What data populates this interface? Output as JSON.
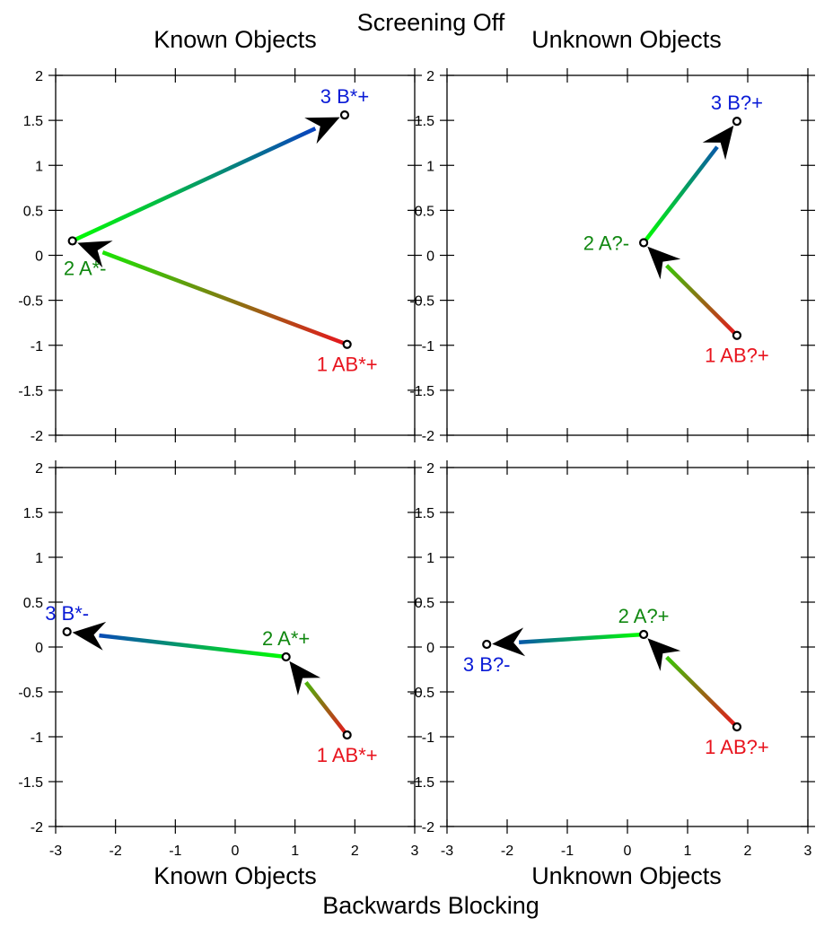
{
  "figure": {
    "top_title": "Screening Off",
    "bottom_title": "Backwards Blocking",
    "column_titles": [
      "Known Objects",
      "Unknown Objects"
    ],
    "bottom_axis_titles": [
      "Known Objects",
      "Unknown Objects"
    ]
  },
  "chart_data": [
    {
      "type": "line",
      "panel": "top-left",
      "title": "Known Objects",
      "xlim": [
        -3,
        3
      ],
      "ylim": [
        -2,
        2
      ],
      "x_ticks": [
        "-3",
        "-2",
        "-1",
        "0",
        "1",
        "2",
        "3"
      ],
      "y_ticks": [
        "2",
        "1.5",
        "1",
        "0.5",
        "0",
        "-0.5",
        "-1",
        "-1.5",
        "-2"
      ],
      "points": [
        {
          "label": "1 AB*+",
          "x": 1.87,
          "y": -0.99,
          "color": "#e8141e",
          "label_pos": "below"
        },
        {
          "label": "2 A*-",
          "x": -2.72,
          "y": 0.16,
          "color": "#118811",
          "label_pos": "below-left"
        },
        {
          "label": "3 B*+",
          "x": 1.83,
          "y": 1.56,
          "color": "#0a1bd6",
          "label_pos": "above"
        }
      ],
      "arrows": [
        {
          "from": 0,
          "to": 1,
          "color_from": "#e8141e",
          "color_to": "#00ff00"
        },
        {
          "from": 1,
          "to": 2,
          "color_from": "#00ff00",
          "color_to": "#0a2bd6"
        }
      ]
    },
    {
      "type": "line",
      "panel": "top-right",
      "title": "Unknown Objects",
      "xlim": [
        -3,
        3
      ],
      "ylim": [
        -2,
        2
      ],
      "x_ticks": [
        "-3",
        "-2",
        "-1",
        "0",
        "1",
        "2",
        "3"
      ],
      "y_ticks": [
        "2",
        "1.5",
        "1",
        "0.5",
        "0",
        "-0.5",
        "-1",
        "-1.5",
        "-2"
      ],
      "points": [
        {
          "label": "1 AB?+",
          "x": 1.82,
          "y": -0.89,
          "color": "#e8141e",
          "label_pos": "below"
        },
        {
          "label": "2 A?-",
          "x": 0.27,
          "y": 0.14,
          "color": "#118811",
          "label_pos": "left"
        },
        {
          "label": "3 B?+",
          "x": 1.82,
          "y": 1.49,
          "color": "#0a1bd6",
          "label_pos": "above"
        }
      ],
      "arrows": [
        {
          "from": 0,
          "to": 1,
          "color_from": "#e8141e",
          "color_to": "#00ff00"
        },
        {
          "from": 1,
          "to": 2,
          "color_from": "#00ff00",
          "color_to": "#0a2bd6"
        }
      ]
    },
    {
      "type": "line",
      "panel": "bottom-left",
      "title": "",
      "xlim": [
        -3,
        3
      ],
      "ylim": [
        -2,
        2
      ],
      "x_ticks": [
        "-3",
        "-2",
        "-1",
        "0",
        "1",
        "2",
        "3"
      ],
      "y_ticks": [
        "2",
        "1.5",
        "1",
        "0.5",
        "0",
        "-0.5",
        "-1",
        "-1.5",
        "-2"
      ],
      "points": [
        {
          "label": "1 AB*+",
          "x": 1.87,
          "y": -0.98,
          "color": "#e8141e",
          "label_pos": "below"
        },
        {
          "label": "2 A*+",
          "x": 0.85,
          "y": -0.11,
          "color": "#118811",
          "label_pos": "above"
        },
        {
          "label": "3 B*-",
          "x": -2.81,
          "y": 0.17,
          "color": "#0a1bd6",
          "label_pos": "above"
        }
      ],
      "arrows": [
        {
          "from": 0,
          "to": 1,
          "color_from": "#e8141e",
          "color_to": "#00ff00"
        },
        {
          "from": 1,
          "to": 2,
          "color_from": "#00ff00",
          "color_to": "#0a2bd6"
        }
      ]
    },
    {
      "type": "line",
      "panel": "bottom-right",
      "title": "",
      "xlim": [
        -3,
        3
      ],
      "ylim": [
        -2,
        2
      ],
      "x_ticks": [
        "-3",
        "-2",
        "-1",
        "0",
        "1",
        "2",
        "3"
      ],
      "y_ticks": [
        "2",
        "1.5",
        "1",
        "0.5",
        "0",
        "-0.5",
        "-1",
        "-1.5",
        "-2"
      ],
      "points": [
        {
          "label": "1 AB?+",
          "x": 1.82,
          "y": -0.89,
          "color": "#e8141e",
          "label_pos": "below"
        },
        {
          "label": "2 A?+",
          "x": 0.27,
          "y": 0.14,
          "color": "#118811",
          "label_pos": "above"
        },
        {
          "label": "3 B?-",
          "x": -2.34,
          "y": 0.03,
          "color": "#0a1bd6",
          "label_pos": "below"
        }
      ],
      "arrows": [
        {
          "from": 0,
          "to": 1,
          "color_from": "#e8141e",
          "color_to": "#00ff00"
        },
        {
          "from": 1,
          "to": 2,
          "color_from": "#00ff00",
          "color_to": "#0a2bd6"
        }
      ]
    }
  ]
}
